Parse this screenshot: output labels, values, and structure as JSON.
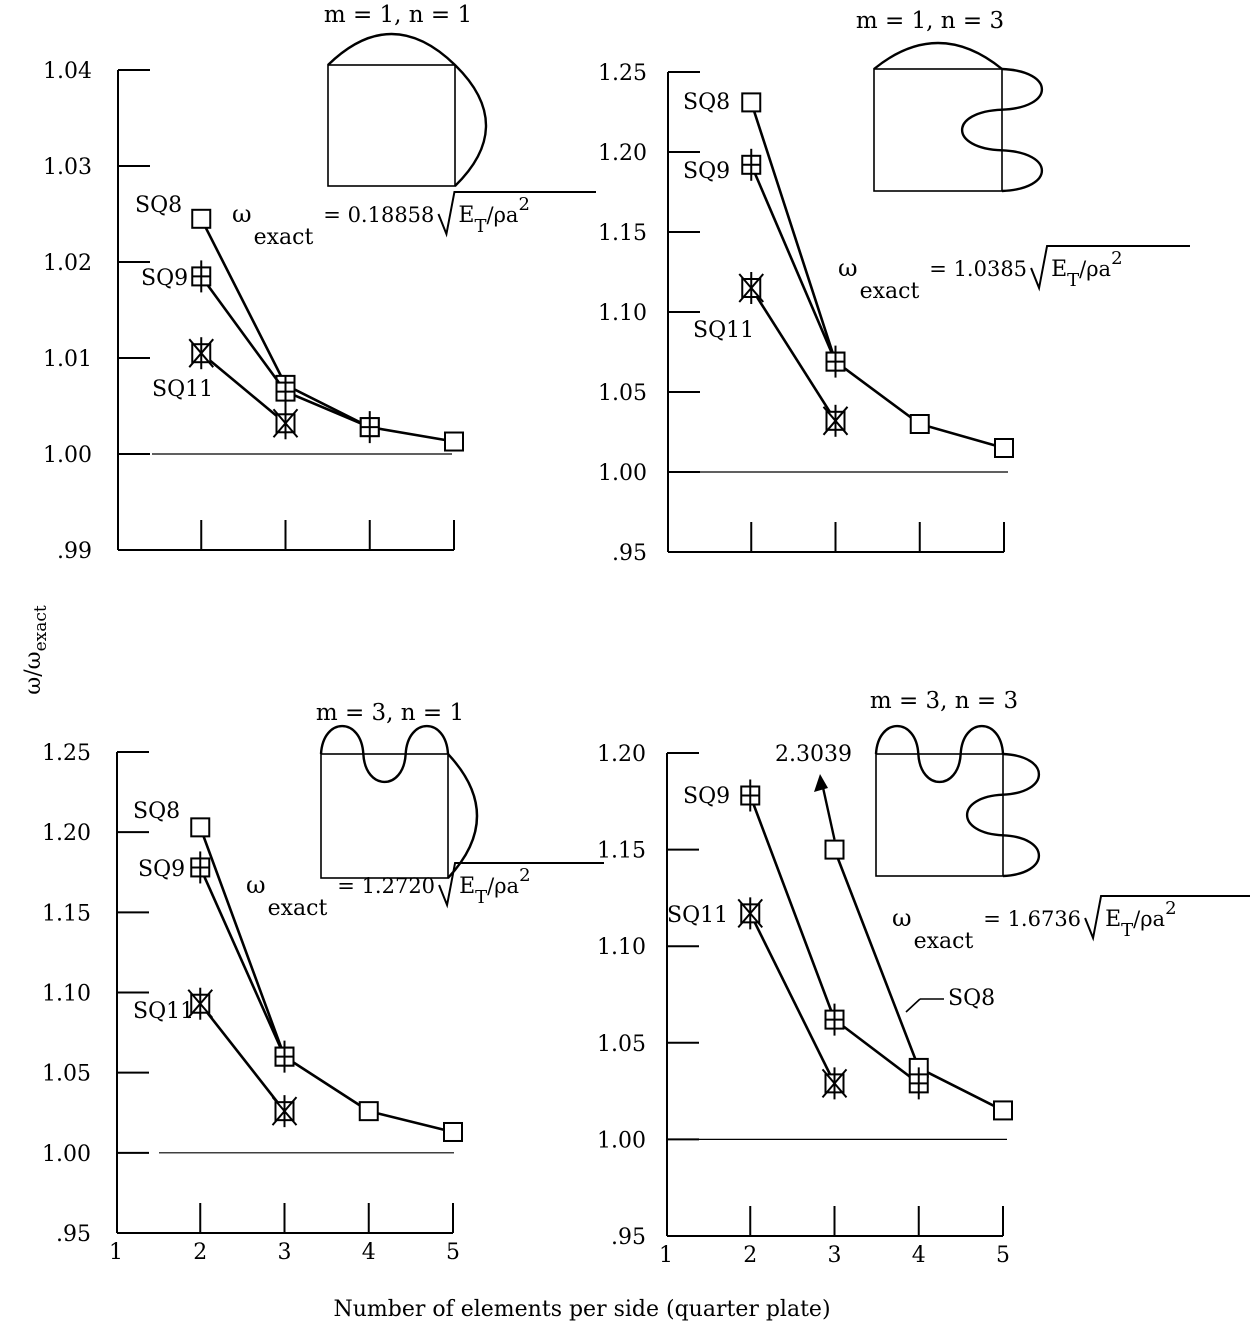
{
  "figure": {
    "xlabel": "Number of elements per side (quarter plate)",
    "ylabel": "ω/ω",
    "ylabel_sub": "exact"
  },
  "chart_data": [
    {
      "type": "line",
      "id": "m1n1",
      "title": "m = 1, n = 1",
      "ylim": [
        0.99,
        1.04
      ],
      "yticks": [
        0.99,
        1.0,
        1.01,
        1.02,
        1.03,
        1.04
      ],
      "ytick_labels": [
        ".99",
        "1.00",
        "1.01",
        "1.02",
        "1.03",
        "1.04"
      ],
      "xticks": [
        2,
        3,
        4,
        5
      ],
      "xtick_labels": [],
      "omega": {
        "prefix": "ω",
        "sub": "exact",
        "value": "= 0.18858",
        "radicand": "E",
        "radicand_sub": "T",
        "radicand_tail": "/ρa",
        "radicand_sup": "2"
      },
      "series": [
        {
          "name": "SQ8",
          "marker": "square",
          "x": [
            2,
            3,
            4,
            5
          ],
          "y": [
            1.0245,
            1.0072,
            1.0028,
            1.0013
          ]
        },
        {
          "name": "SQ9",
          "marker": "square-plus",
          "x": [
            2,
            3,
            4
          ],
          "y": [
            1.0185,
            1.0065,
            1.0028
          ]
        },
        {
          "name": "SQ11",
          "marker": "square-x",
          "x": [
            2,
            3
          ],
          "y": [
            1.0105,
            1.0032
          ]
        }
      ]
    },
    {
      "type": "line",
      "id": "m1n3",
      "title": "m = 1, n = 3",
      "ylim": [
        0.95,
        1.25
      ],
      "yticks": [
        0.95,
        1.0,
        1.05,
        1.1,
        1.15,
        1.2,
        1.25
      ],
      "ytick_labels": [
        ".95",
        "1.00",
        "1.05",
        "1.10",
        "1.15",
        "1.20",
        "1.25"
      ],
      "xticks": [
        2,
        3,
        4,
        5
      ],
      "xtick_labels": [],
      "omega": {
        "prefix": "ω",
        "sub": "exact",
        "value": "= 1.0385",
        "radicand": "E",
        "radicand_sub": "T",
        "radicand_tail": "/ρa",
        "radicand_sup": "2"
      },
      "series": [
        {
          "name": "SQ8",
          "marker": "square",
          "x": [
            2,
            3,
            4,
            5
          ],
          "y": [
            1.231,
            1.069,
            1.03,
            1.015
          ]
        },
        {
          "name": "SQ9",
          "marker": "square-plus",
          "x": [
            2,
            3
          ],
          "y": [
            1.192,
            1.069
          ]
        },
        {
          "name": "SQ11",
          "marker": "square-x",
          "x": [
            2,
            3
          ],
          "y": [
            1.115,
            1.032
          ]
        }
      ]
    },
    {
      "type": "line",
      "id": "m3n1",
      "title": "m = 3, n = 1",
      "ylim": [
        0.95,
        1.25
      ],
      "yticks": [
        0.95,
        1.0,
        1.05,
        1.1,
        1.15,
        1.2,
        1.25
      ],
      "ytick_labels": [
        ".95",
        "1.00",
        "1.05",
        "1.10",
        "1.15",
        "1.20",
        "1.25"
      ],
      "xticks": [
        1,
        2,
        3,
        4,
        5
      ],
      "xtick_labels": [
        "1",
        "2",
        "3",
        "4",
        "5"
      ],
      "omega": {
        "prefix": "ω",
        "sub": "exact",
        "value": "= 1.2720",
        "radicand": "E",
        "radicand_sub": "T",
        "radicand_tail": "/ρa",
        "radicand_sup": "2"
      },
      "series": [
        {
          "name": "SQ8",
          "marker": "square",
          "x": [
            2,
            3,
            4,
            5
          ],
          "y": [
            1.203,
            1.06,
            1.026,
            1.013
          ]
        },
        {
          "name": "SQ9",
          "marker": "square-plus",
          "x": [
            2,
            3
          ],
          "y": [
            1.178,
            1.06
          ]
        },
        {
          "name": "SQ11",
          "marker": "square-x",
          "x": [
            2,
            3
          ],
          "y": [
            1.093,
            1.026
          ]
        }
      ]
    },
    {
      "type": "line",
      "id": "m3n3",
      "title": "m = 3, n = 3",
      "ylim": [
        0.95,
        1.2
      ],
      "yticks": [
        0.95,
        1.0,
        1.05,
        1.1,
        1.15,
        1.2
      ],
      "ytick_labels": [
        ".95",
        "1.00",
        "1.05",
        "1.10",
        "1.15",
        "1.20"
      ],
      "xticks": [
        1,
        2,
        3,
        4,
        5
      ],
      "xtick_labels": [
        "1",
        "2",
        "3",
        "4",
        "5"
      ],
      "omega": {
        "prefix": "ω",
        "sub": "exact",
        "value": "= 1.6736",
        "radicand": "E",
        "radicand_sub": "T",
        "radicand_tail": "/ρa",
        "radicand_sup": "2"
      },
      "offscale_annotation": {
        "label": "2.3039",
        "series": "SQ8",
        "x": 2,
        "y": 2.3039
      },
      "series": [
        {
          "name": "SQ8",
          "marker": "square",
          "x": [
            3,
            4,
            5
          ],
          "y": [
            1.15,
            1.037,
            1.015
          ]
        },
        {
          "name": "SQ9",
          "marker": "square-plus",
          "x": [
            2,
            3,
            4
          ],
          "y": [
            1.178,
            1.062,
            1.029
          ]
        },
        {
          "name": "SQ11",
          "marker": "square-x",
          "x": [
            2,
            3
          ],
          "y": [
            1.117,
            1.029
          ]
        }
      ]
    }
  ]
}
